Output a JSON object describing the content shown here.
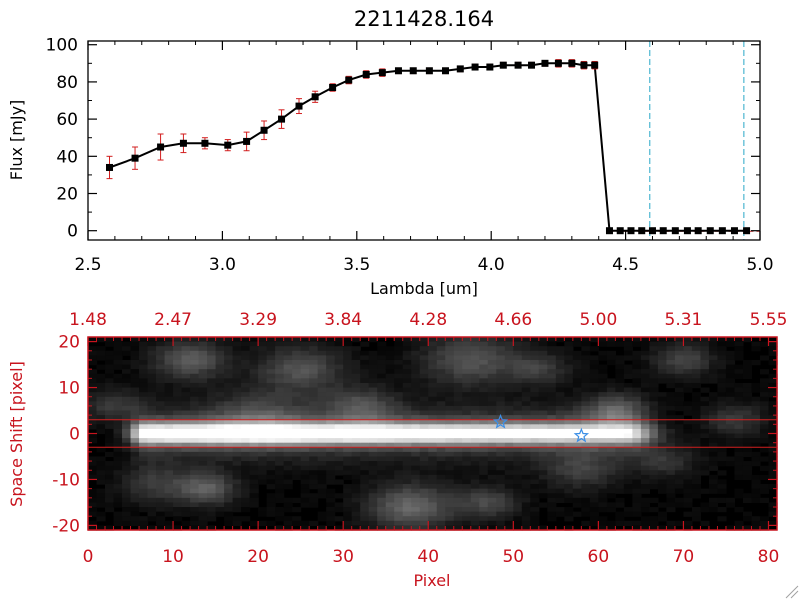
{
  "chart_data": [
    {
      "type": "line",
      "title": "2211428.164",
      "xlabel": "Lambda [um]",
      "ylabel": "Flux [mJy]",
      "xlim": [
        2.5,
        5.0
      ],
      "ylim": [
        -5,
        102
      ],
      "xticks": [
        "2.5",
        "3.0",
        "3.5",
        "4.0",
        "4.5",
        "5.0"
      ],
      "yticks": [
        "0",
        "20",
        "40",
        "60",
        "80",
        "100"
      ],
      "grid": false,
      "colors": {
        "line": "#000000",
        "marker": "#000000",
        "errorbar": "#d21e1e",
        "vline": "#2aa8c8",
        "zero": "#d21e1e"
      },
      "series": [
        {
          "x": [
            2.58,
            2.675,
            2.77,
            2.855,
            2.935,
            3.02,
            3.09,
            3.155,
            3.22,
            3.285,
            3.345,
            3.41,
            3.47,
            3.535,
            3.595,
            3.655,
            3.71,
            3.77,
            3.83,
            3.885,
            3.94,
            3.995,
            4.045,
            4.1,
            4.15,
            4.2,
            4.25,
            4.3,
            4.345,
            4.385,
            4.44,
            4.48,
            4.52,
            4.56,
            4.6,
            4.64,
            4.685,
            4.73,
            4.77,
            4.815,
            4.86,
            4.905,
            4.95
          ],
          "y": [
            34,
            39,
            45,
            47,
            47,
            46,
            48,
            54,
            60,
            67,
            72,
            77,
            81,
            84,
            85,
            86,
            86,
            86,
            86,
            87,
            88,
            88,
            89,
            89,
            89,
            90,
            90,
            90,
            89,
            89,
            0,
            0,
            0,
            0,
            0,
            0,
            0,
            0,
            0,
            0,
            0,
            0,
            0
          ],
          "yerr": [
            6,
            6,
            7,
            5,
            3,
            3,
            5,
            5,
            5,
            4,
            3,
            2,
            2,
            2,
            2,
            1.5,
            1.5,
            1.5,
            1.5,
            1.5,
            1.5,
            1.5,
            1.5,
            1.5,
            1.5,
            1.5,
            2,
            2,
            2,
            2,
            0,
            0,
            0,
            0,
            0,
            0,
            0,
            0,
            0,
            0,
            0,
            0,
            0
          ]
        }
      ],
      "vertical_lines": [
        4.59,
        4.94
      ]
    },
    {
      "type": "heatmap",
      "xlabel": "Pixel",
      "ylabel": "Space Shift [pixel]",
      "xlim": [
        0,
        81
      ],
      "ylim": [
        -21,
        21
      ],
      "xticks": [
        "0",
        "10",
        "20",
        "30",
        "40",
        "50",
        "60",
        "70",
        "80"
      ],
      "yticks": [
        "-20",
        "-10",
        "0",
        "10",
        "20"
      ],
      "top_axis_ticks": [
        "1.48",
        "2.47",
        "3.29",
        "3.84",
        "4.28",
        "4.66",
        "5.00",
        "5.31",
        "5.55"
      ],
      "colors": {
        "axes": "#c8141e",
        "aperture": "#d21e1e",
        "star": "#3a8ee6"
      },
      "trace": {
        "y_center": 0,
        "x_start": 7,
        "x_end": 63
      },
      "aperture_lines": [
        3,
        -3
      ],
      "stars": [
        {
          "x": 48.5,
          "y": 2.5
        },
        {
          "x": 58,
          "y": -0.5
        }
      ],
      "blobs": [
        {
          "x": 12,
          "y": 16,
          "s": 3,
          "v": 0.33
        },
        {
          "x": 25,
          "y": 14,
          "s": 3.5,
          "v": 0.3
        },
        {
          "x": 32,
          "y": 6,
          "s": 3,
          "v": 0.25
        },
        {
          "x": 45,
          "y": 16,
          "s": 4,
          "v": 0.3
        },
        {
          "x": 53,
          "y": 14,
          "s": 2.5,
          "v": 0.2
        },
        {
          "x": 62,
          "y": 5,
          "s": 2.5,
          "v": 0.3
        },
        {
          "x": 70,
          "y": 16,
          "s": 2.5,
          "v": 0.25
        },
        {
          "x": 3,
          "y": 6,
          "s": 2.5,
          "v": 0.2
        },
        {
          "x": 8,
          "y": -11,
          "s": 3,
          "v": 0.2
        },
        {
          "x": 14,
          "y": -12,
          "s": 2.5,
          "v": 0.33
        },
        {
          "x": 38,
          "y": -16,
          "s": 3.5,
          "v": 0.38
        },
        {
          "x": 47,
          "y": -15,
          "s": 2.5,
          "v": 0.25
        },
        {
          "x": 58,
          "y": -8,
          "s": 3,
          "v": 0.2
        },
        {
          "x": 68,
          "y": -6,
          "s": 2.5,
          "v": 0.18
        },
        {
          "x": 76,
          "y": 3,
          "s": 2.5,
          "v": 0.2
        },
        {
          "x": 20,
          "y": 4,
          "s": 4,
          "v": 0.2
        }
      ]
    }
  ]
}
